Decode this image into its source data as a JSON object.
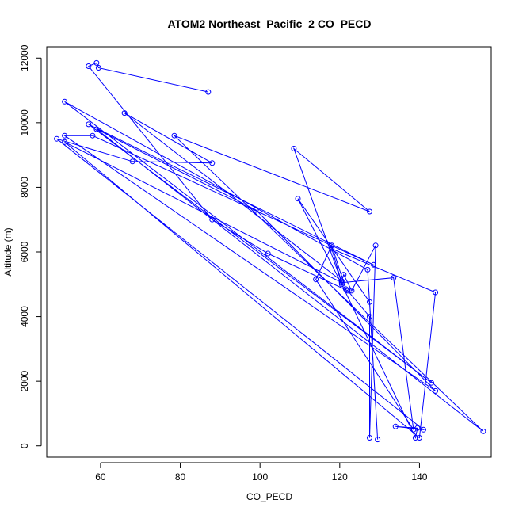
{
  "chart_data": {
    "type": "line",
    "title": "ATOM2 Northeast_Pacific_2 CO_PECD",
    "xlabel": "CO_PECD",
    "ylabel": "Altitude (m)",
    "xlim": [
      46.5,
      158
    ],
    "ylim": [
      -350,
      12350
    ],
    "x_ticks": [
      60,
      80,
      100,
      120,
      140
    ],
    "y_ticks": [
      0,
      2000,
      4000,
      6000,
      8000,
      10000,
      12000
    ],
    "grid": false,
    "series_color": "#0000ff",
    "series": [
      {
        "points": [
          [
            87,
            10950
          ],
          [
            59.5,
            11700
          ],
          [
            59,
            11850
          ],
          [
            57,
            11750
          ],
          [
            88,
            7000
          ],
          [
            102,
            5950
          ],
          [
            122,
            4800
          ],
          [
            127.5,
            4000
          ],
          [
            127.5,
            250
          ],
          [
            129,
            6200
          ],
          [
            123,
            4800
          ],
          [
            121,
            5300
          ],
          [
            120.5,
            5100
          ],
          [
            66,
            10300
          ],
          [
            88,
            8750
          ],
          [
            68,
            8800
          ],
          [
            49,
            9500
          ],
          [
            141,
            500
          ],
          [
            134,
            600
          ],
          [
            139.5,
            550
          ],
          [
            139,
            250
          ],
          [
            120.5,
            5000
          ],
          [
            109.5,
            7650
          ],
          [
            127.5,
            4450
          ],
          [
            129.5,
            200
          ],
          [
            127,
            5450
          ],
          [
            51,
            10650
          ],
          [
            143,
            1950
          ],
          [
            57,
            9950
          ],
          [
            128.5,
            5600
          ],
          [
            58,
            9600
          ],
          [
            51,
            9600
          ],
          [
            144,
            1700
          ],
          [
            99,
            7300
          ],
          [
            59,
            9800
          ],
          [
            156,
            450
          ],
          [
            78.5,
            9600
          ],
          [
            127.5,
            7250
          ],
          [
            108.5,
            9200
          ],
          [
            120.5,
            5050
          ],
          [
            51,
            9400
          ],
          [
            140,
            250
          ],
          [
            144,
            4750
          ],
          [
            118,
            6100
          ],
          [
            120.5,
            5050
          ],
          [
            133.5,
            5200
          ],
          [
            138.5,
            500
          ],
          [
            114,
            5150
          ],
          [
            118,
            6200
          ],
          [
            121.5,
            4850
          ]
        ]
      }
    ]
  }
}
